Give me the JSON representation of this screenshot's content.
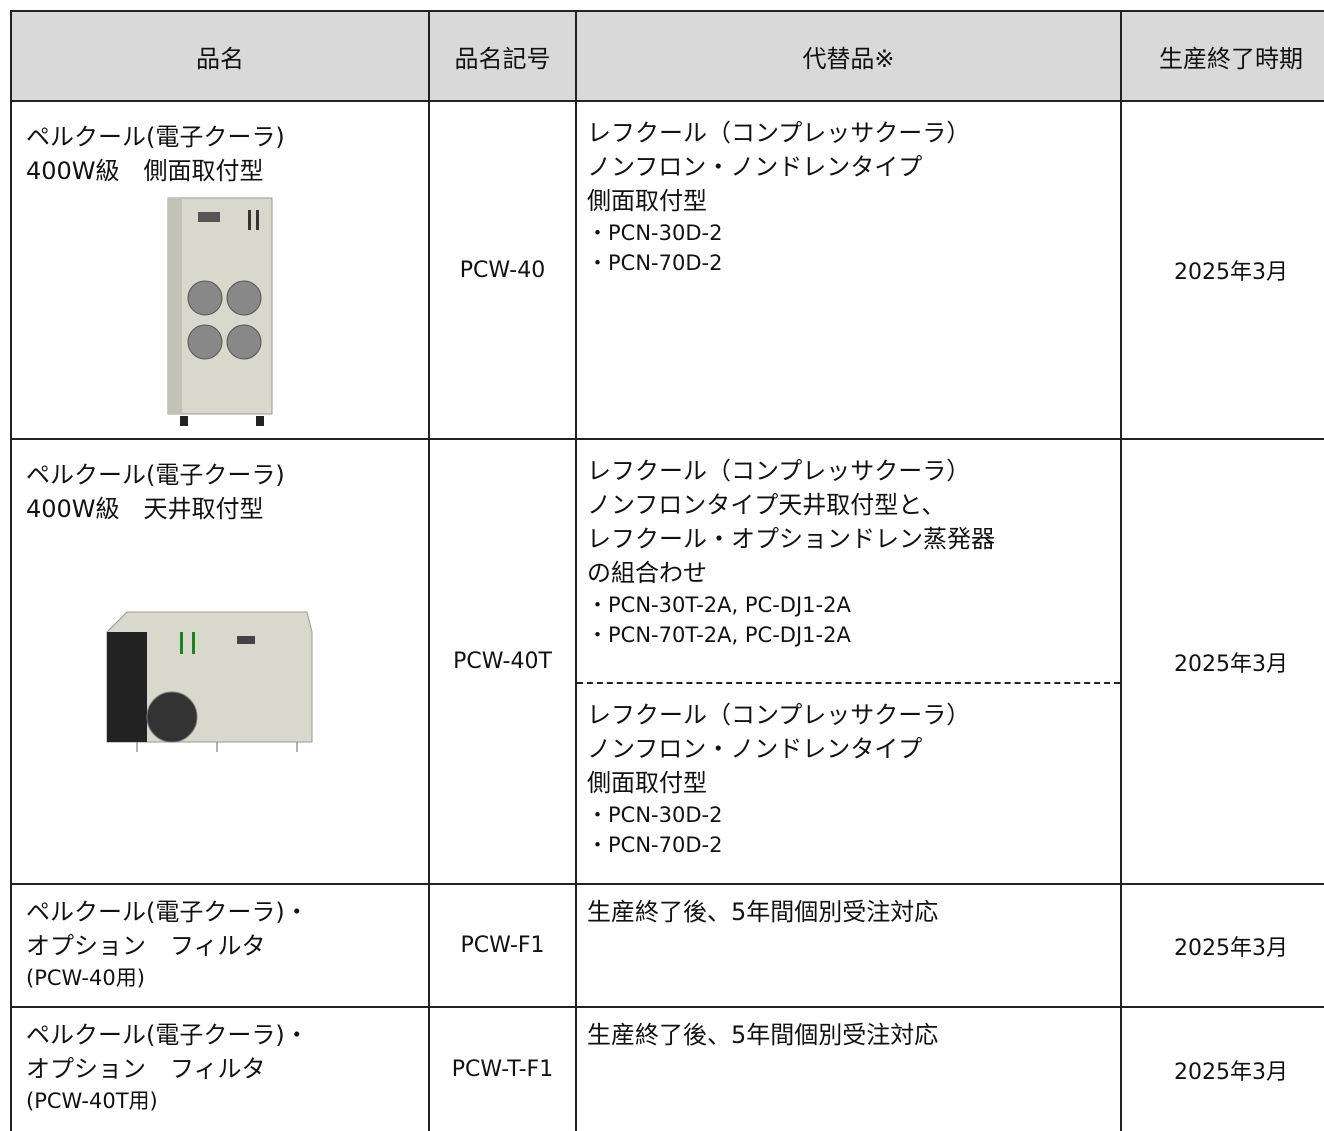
{
  "table": {
    "header": [
      "品名",
      "品名記号",
      "代替品※",
      "生産終了時期"
    ],
    "rows": [
      {
        "name": [
          "ペルクール(電子クーラ)",
          "400W級　側面取付型"
        ],
        "code": "PCW-40",
        "alternatives": [
          [
            "レフクール（コンプレッサクーラ）",
            "ノンフロン・ノンドレンタイプ",
            "側面取付型",
            "・PCN-30D-2",
            "・PCN-70D-2"
          ]
        ],
        "end": "2025年3月"
      },
      {
        "name": [
          "ペルクール(電子クーラ)",
          "400W級　天井取付型"
        ],
        "code": "PCW-40T",
        "alternatives": [
          [
            "レフクール（コンプレッサクーラ）",
            "ノンフロンタイプ天井取付型と、",
            "レフクール・オプションドレン蒸発器",
            "の組合わせ",
            "・PCN-30T-2A, PC-DJ1-2A",
            "・PCN-70T-2A, PC-DJ1-2A"
          ],
          [
            "レフクール（コンプレッサクーラ）",
            "ノンフロン・ノンドレンタイプ",
            "側面取付型",
            "・PCN-30D-2",
            "・PCN-70D-2"
          ]
        ],
        "end": "2025年3月"
      },
      {
        "name": [
          "ペルクール(電子クーラ)・",
          "オプション　フィルタ",
          "(PCW-40用)"
        ],
        "code": "PCW-F1",
        "alternatives": [
          [
            "生産終了後、5年間個別受注対応"
          ]
        ],
        "end": "2025年3月"
      },
      {
        "name": [
          "ペルクール(電子クーラ)・",
          "オプション　フィルタ",
          "(PCW-40T用)"
        ],
        "code": "PCW-T-F1",
        "alternatives": [
          [
            "生産終了後、5年間個別受注対応"
          ]
        ],
        "end": "2025年3月"
      }
    ]
  }
}
